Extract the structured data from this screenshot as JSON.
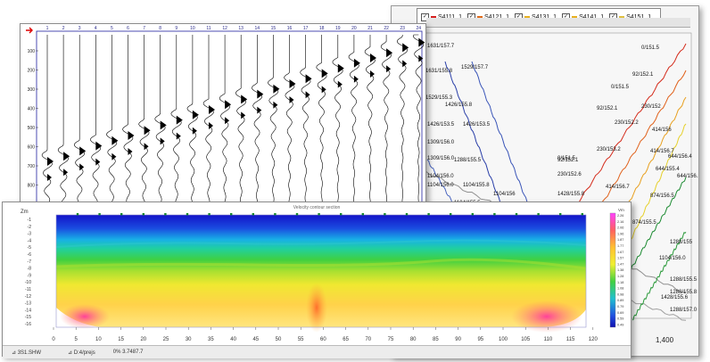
{
  "seismogram": {
    "trace_labels": [
      "1",
      "2",
      "3",
      "4",
      "5",
      "6",
      "7",
      "8",
      "9",
      "10",
      "11",
      "12",
      "13",
      "14",
      "15",
      "16",
      "17",
      "18",
      "19",
      "20",
      "21",
      "22",
      "23",
      "24"
    ],
    "time_ticks": [
      "100",
      "200",
      "300",
      "400",
      "500",
      "600",
      "700",
      "800",
      "900"
    ]
  },
  "travel_time": {
    "legend": [
      {
        "label": "S4111_1",
        "color": "#d61f1f"
      },
      {
        "label": "S4121_1",
        "color": "#e06a1a"
      },
      {
        "label": "S4131_1",
        "color": "#e8b020"
      },
      {
        "label": "S4141_1",
        "color": "#e8b020"
      },
      {
        "label": "S4151_1",
        "color": "#e0c040"
      }
    ],
    "point_labels": [
      "1631/157.7",
      "1631/155.8",
      "1529/157.7",
      "1529/155.3",
      "1426/155.8",
      "1426/153.5",
      "1426/153.5",
      "1309/156.0",
      "1309/156.0",
      "1288/155.5",
      "1104/156.0",
      "1104/156.0",
      "1104/155.8",
      "1104/155.5",
      "874/155.5",
      "874/155.5",
      "1104/156",
      "0/151.5",
      "92/152.1",
      "0/151.5",
      "92/152.1",
      "230/152",
      "230/152.2",
      "414/156",
      "414/156.7",
      "644/156.4",
      "644/155.4",
      "644/156.1",
      "874/156.5",
      "230/153.2",
      "414/156.7",
      "1428/155.8",
      "874/155.5",
      "1288/155",
      "1104/156.0",
      "1288/155.5",
      "1428/155.6",
      "1288/155.8",
      "1288/157.0",
      "0/151.5",
      "92/152.1",
      "230/152.6",
      "1632/157",
      "1004/153",
      "1653/157"
    ],
    "x_ticks": [
      "1,400"
    ]
  },
  "velocity_section": {
    "title": "Velocity contour section",
    "ylabel": "Zm",
    "y_ticks": [
      "-1",
      "-2",
      "-3",
      "-4",
      "-5",
      "-6",
      "-7",
      "-8",
      "-9",
      "-10",
      "-11",
      "-12",
      "-13",
      "-14",
      "-15",
      "-16"
    ],
    "x_ticks": [
      "0",
      "5",
      "10",
      "15",
      "20",
      "25",
      "30",
      "35",
      "40",
      "45",
      "50",
      "55",
      "60",
      "65",
      "70",
      "75",
      "80",
      "85",
      "90",
      "95",
      "100",
      "105",
      "110",
      "115",
      "120"
    ],
    "colorbar_unit": "Vm",
    "colorbar_ticks": [
      "2.26",
      "2.16",
      "2.06",
      "1.96",
      "1.87",
      "1.77",
      "1.67",
      "1.57",
      "1.47",
      "1.38",
      "1.28",
      "1.18",
      "1.08",
      "0.98",
      "0.89",
      "0.79",
      "0.69",
      "0.59",
      "0.49"
    ],
    "status": {
      "item1": "⊿ 3S1.SHW",
      "item2": "⊿ D:4/prejs",
      "item3": "0%   3.7487.7"
    }
  }
}
